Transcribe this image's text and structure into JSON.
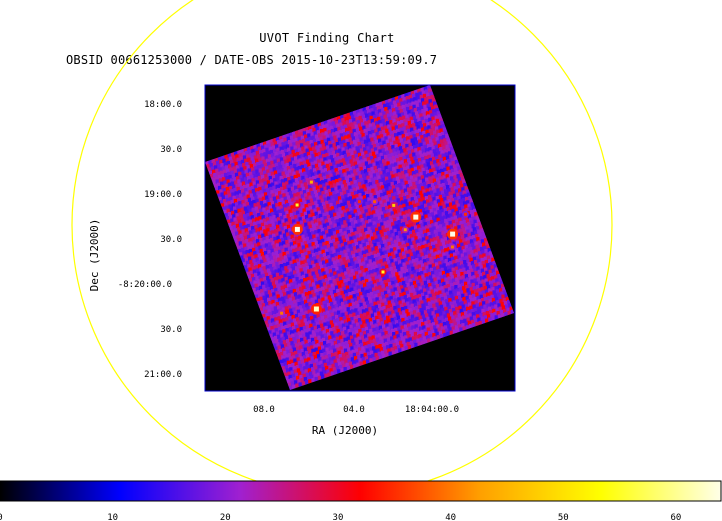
{
  "chart_data": {
    "type": "heatmap",
    "title": "UVOT Finding Chart",
    "subtitle": "OBSID 00661253000 / DATE-OBS 2015-10-23T13:59:09.7",
    "xlabel": "RA (J2000)",
    "ylabel": "Dec (J2000)",
    "x_ticks": [
      "08.0",
      "04.0",
      "18:04:00.0"
    ],
    "y_ticks": [
      "18:00.0",
      "30.0",
      "19:00.0",
      "30.0",
      "-8:20:00.0",
      "30.0",
      "21:00.0"
    ],
    "colorbar": {
      "ticks": [
        0,
        10,
        20,
        30,
        40,
        50,
        60
      ],
      "range": [
        0,
        64
      ],
      "colormap": [
        "#000000",
        "#0000ff",
        "#a020d0",
        "#ff0000",
        "#ffa000",
        "#ffff00",
        "#ffffe8"
      ]
    },
    "overlay_circle_color": "#ffff00",
    "background_color": "#000000",
    "frame_color": "#0000cc",
    "grid": false,
    "bright_sources": [
      {
        "x_frac": 0.265,
        "y_frac": 0.385,
        "value": 64
      },
      {
        "x_frac": 0.223,
        "y_frac": 0.72,
        "value": 62
      },
      {
        "x_frac": 0.75,
        "y_frac": 0.495,
        "value": 64
      },
      {
        "x_frac": 0.87,
        "y_frac": 0.61,
        "value": 64
      },
      {
        "x_frac": 0.54,
        "y_frac": 0.665,
        "value": 55
      },
      {
        "x_frac": 0.3,
        "y_frac": 0.29,
        "value": 55
      },
      {
        "x_frac": 0.68,
        "y_frac": 0.42,
        "value": 48
      },
      {
        "x_frac": 0.39,
        "y_frac": 0.22,
        "value": 45
      },
      {
        "x_frac": 0.69,
        "y_frac": 0.53,
        "value": 42
      },
      {
        "x_frac": 0.08,
        "y_frac": 0.69,
        "value": 40
      },
      {
        "x_frac": 0.85,
        "y_frac": 0.66,
        "value": 40
      },
      {
        "x_frac": 0.61,
        "y_frac": 0.38,
        "value": 38
      },
      {
        "x_frac": 0.55,
        "y_frac": 0.36,
        "value": 35
      },
      {
        "x_frac": 0.95,
        "y_frac": 0.55,
        "value": 35
      }
    ]
  }
}
